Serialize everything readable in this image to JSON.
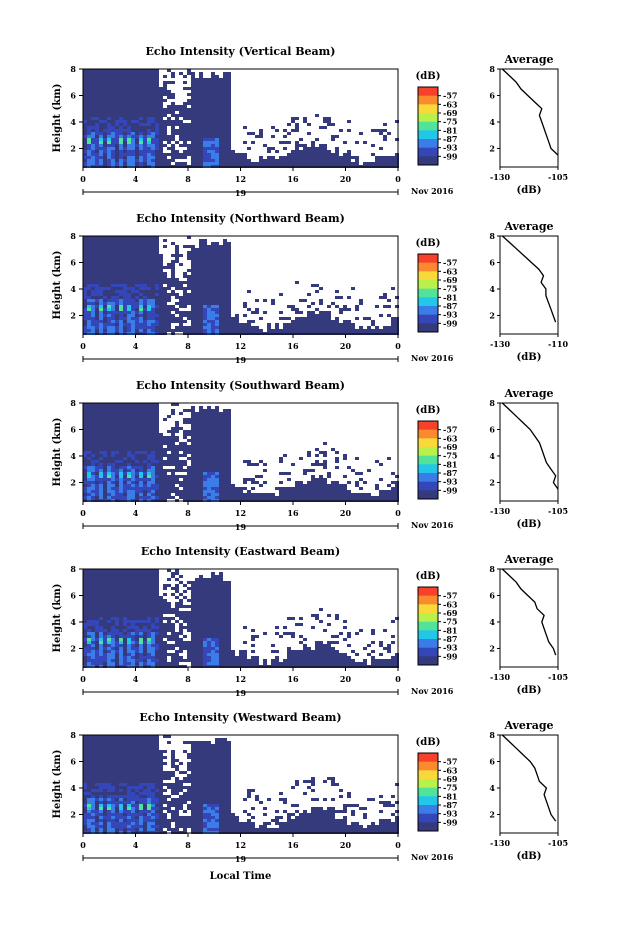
{
  "chart_data": {
    "type": "heatmap",
    "date_label": "Nov 2016",
    "date_tick": "19",
    "xlabel": "Local Time",
    "ylabel": "Height (km)",
    "x_ticks": [
      "0",
      "4",
      "8",
      "12",
      "16",
      "20",
      "0"
    ],
    "xlim_hours": [
      0,
      24
    ],
    "y_ticks": [
      "2",
      "4",
      "6",
      "8"
    ],
    "ylim_km": [
      0.6,
      8
    ],
    "colorbar": {
      "unit": "(dB)",
      "tick_labels": [
        "-57",
        "-63",
        "-69",
        "-75",
        "-81",
        "-87",
        "-93",
        "-99"
      ],
      "colors": [
        "#f7412a",
        "#fb8a2e",
        "#f9d93a",
        "#b9f04a",
        "#51e39a",
        "#21c6e9",
        "#3a7de8",
        "#3446b8",
        "#343a7c"
      ]
    },
    "average_profile": {
      "title": "Average",
      "xlabel": "(dB)",
      "y_ticks": [
        "2",
        "4",
        "6",
        "8"
      ],
      "heights_km": [
        1.5,
        2.0,
        2.5,
        3.0,
        3.5,
        4.0,
        4.5,
        5.0,
        5.5,
        6.0,
        6.5,
        7.0,
        7.5,
        8.0
      ]
    },
    "panels": [
      {
        "title": "Echo Intensity (Vertical Beam)",
        "profile_xticks": [
          "-130",
          "-105"
        ],
        "profile_xlim": [
          -130,
          -105
        ],
        "profile_values": [
          -105,
          -108,
          -109,
          -110,
          -111,
          -112,
          -113,
          -112,
          -115,
          -118,
          -121,
          -123,
          -126,
          -129
        ]
      },
      {
        "title": "Echo Intensity (Northward Beam)",
        "profile_xticks": [
          "-130",
          "-110"
        ],
        "profile_xlim": [
          -130,
          -106
        ],
        "profile_values": [
          -107,
          -108,
          -109,
          -110,
          -111,
          -111,
          -113,
          -112,
          -114,
          -117,
          -120,
          -123,
          -126,
          -129
        ]
      },
      {
        "title": "Echo Intensity (Southward Beam)",
        "profile_xticks": [
          "-130",
          "-105"
        ],
        "profile_xlim": [
          -130,
          -105
        ],
        "profile_values": [
          -105,
          -107,
          -106,
          -108,
          -110,
          -111,
          -112,
          -113,
          -115,
          -117,
          -120,
          -123,
          -126,
          -129
        ]
      },
      {
        "title": "Echo Intensity (Eastward Beam)",
        "profile_xticks": [
          "-130",
          "-105"
        ],
        "profile_xlim": [
          -130,
          -105
        ],
        "profile_values": [
          -106,
          -107,
          -109,
          -110,
          -111,
          -112,
          -111,
          -114,
          -115,
          -118,
          -121,
          -123,
          -126,
          -129
        ]
      },
      {
        "title": "Echo Intensity (Westward Beam)",
        "profile_xticks": [
          "-130",
          "-105"
        ],
        "profile_xlim": [
          -130,
          -105
        ],
        "profile_values": [
          -106,
          -108,
          -109,
          -110,
          -111,
          -110,
          -113,
          -114,
          -115,
          -117,
          -120,
          -123,
          -126,
          -129
        ]
      }
    ]
  }
}
